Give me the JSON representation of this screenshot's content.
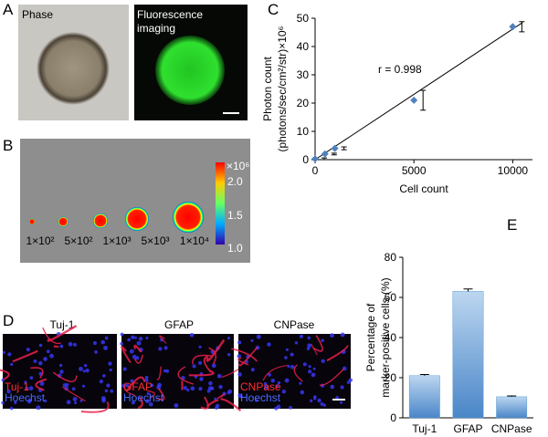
{
  "panel_A": {
    "label": "A",
    "phase": "Phase",
    "fluorescence": [
      "Fluorescence",
      "imaging"
    ]
  },
  "panel_B": {
    "label": "B",
    "colorbar_unit": "×10⁶",
    "colorbar_labels": [
      "2.0",
      "1.5",
      "1.0"
    ],
    "well_labels": [
      "1×10²",
      "5×10²",
      "1×10³",
      "5×10³",
      "1×10⁴"
    ]
  },
  "panel_D": {
    "label": "D",
    "titles": [
      "Tuj-1",
      "GFAP",
      "CNPase"
    ],
    "counterstain": "Hoechst"
  },
  "chart_data": [
    {
      "type": "scatter",
      "label": "C",
      "x": [
        0,
        500,
        1000,
        5000,
        10000
      ],
      "values": [
        0.3,
        2,
        4,
        21,
        47
      ],
      "errors": [
        0.3,
        0.3,
        0.5,
        3.5,
        1.8
      ],
      "color": "#4f81bd",
      "trendline": {
        "x": [
          0,
          10500
        ],
        "values": [
          0,
          48.5
        ]
      },
      "annotation": "r = 0.998",
      "xlabel": "Cell count",
      "ylabel": [
        "Photon count",
        "(photons/sec/cm²/str)×10⁶"
      ],
      "xlim": [
        0,
        11000
      ],
      "ylim": [
        0,
        50
      ],
      "xticks": [
        0,
        5000,
        10000
      ],
      "yticks": [
        0,
        10,
        20,
        30,
        40,
        50
      ]
    },
    {
      "type": "bar",
      "label": "E",
      "categories": [
        "Tuj-1",
        "GFAP",
        "CNPase"
      ],
      "values": [
        21,
        63,
        10.5
      ],
      "errors": [
        0.6,
        1.2,
        0.4
      ],
      "color": "#5b9bd5",
      "ylim": [
        0,
        80
      ],
      "yticks": [
        0,
        20,
        40,
        60,
        80
      ],
      "ylabel": [
        "Percentage of",
        "marker-positive cells (%)"
      ]
    }
  ]
}
